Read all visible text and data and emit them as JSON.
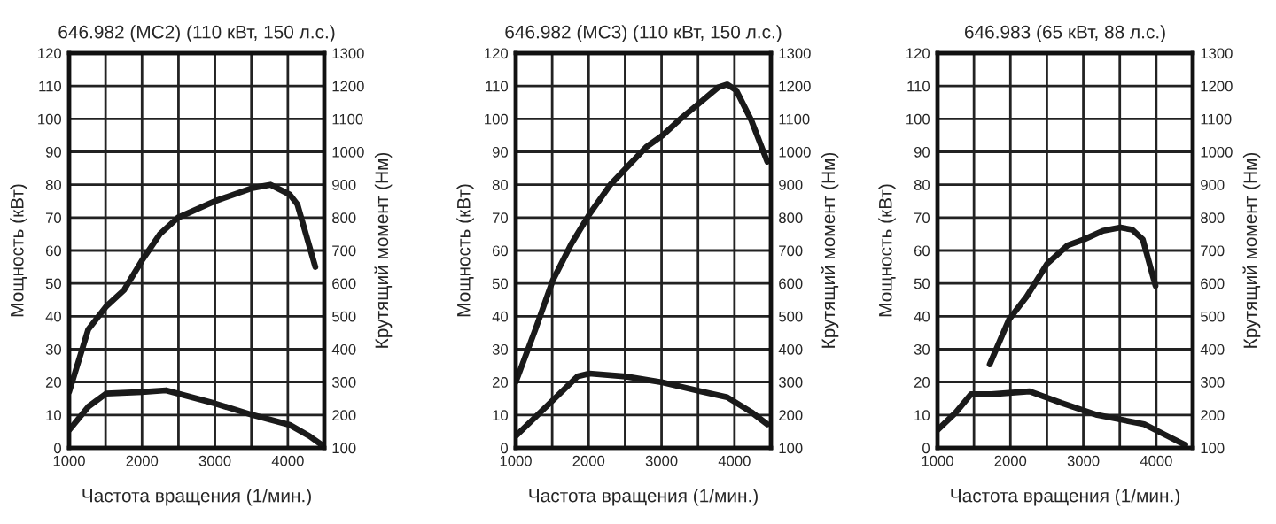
{
  "chart_data": [
    {
      "type": "line",
      "title": "646.982 (MC2) (110 кВт, 150 л.с.)",
      "xlabel": "Частота вращения (1/мин.)",
      "ylabel": "Мощность (кВт)",
      "y2label": "Крутящий момент (Нм)",
      "xlim": [
        1000,
        4500
      ],
      "xticks": [
        1000,
        {
          "value": 1500,
          "label": null
        },
        2000,
        {
          "value": 2500,
          "label": null
        },
        3000,
        {
          "value": 3500,
          "label": null
        },
        4000,
        {
          "value": 4500,
          "label": null
        }
      ],
      "ylim": [
        0,
        120
      ],
      "yticks": [
        0,
        10,
        20,
        30,
        40,
        50,
        60,
        70,
        80,
        90,
        100,
        110,
        120
      ],
      "y2lim": [
        100,
        1300
      ],
      "y2ticks": [
        100,
        200,
        300,
        400,
        500,
        600,
        700,
        800,
        900,
        1000,
        1100,
        1200,
        1300
      ],
      "grid": true,
      "legend": false,
      "series": [
        {
          "color": "#1a1a1a",
          "x": [
            1000,
            1262,
            1508,
            1754,
            2000,
            2246,
            2492,
            3000,
            3516,
            3762,
            4025,
            4131,
            4377
          ],
          "values": [
            17,
            36,
            43,
            48,
            57,
            65,
            70,
            75,
            79,
            80,
            77,
            74,
            55
          ]
        },
        {
          "color": "#1a1a1a",
          "axis": "y2",
          "x": [
            1000,
            1262,
            1508,
            2000,
            2328,
            3000,
            3516,
            4025,
            4295,
            4459
          ],
          "values": [
            154,
            225,
            265,
            270,
            275,
            235,
            200,
            170,
            136,
            110
          ]
        }
      ]
    },
    {
      "type": "line",
      "title": "646.982 (MC3) (110 кВт, 150 л.с.)",
      "xlabel": "Частота вращения (1/мин.)",
      "ylabel": "Мощность (кВт)",
      "y2label": "Крутящий момент (Нм)",
      "xlim": [
        1000,
        4500
      ],
      "xticks": [
        1000,
        {
          "value": 1500,
          "label": null
        },
        2000,
        {
          "value": 2500,
          "label": null
        },
        3000,
        {
          "value": 3500,
          "label": null
        },
        4000,
        {
          "value": 4500,
          "label": null
        }
      ],
      "ylim": [
        0,
        120
      ],
      "yticks": [
        0,
        10,
        20,
        30,
        40,
        50,
        60,
        70,
        80,
        90,
        100,
        110,
        120
      ],
      "y2lim": [
        100,
        1300
      ],
      "y2ticks": [
        100,
        200,
        300,
        400,
        500,
        600,
        700,
        800,
        900,
        1000,
        1100,
        1200,
        1300
      ],
      "grid": true,
      "legend": false,
      "series": [
        {
          "color": "#1a1a1a",
          "x": [
            1000,
            1270,
            1510,
            1763,
            2010,
            2298,
            2512,
            2791,
            3013,
            3285,
            3530,
            3777,
            3900,
            4024,
            4230,
            4450
          ],
          "values": [
            20,
            36,
            51,
            62,
            71,
            80,
            85,
            91.5,
            95,
            100.5,
            105,
            109.6,
            110.5,
            108.7,
            99.6,
            87
          ]
        },
        {
          "color": "#1a1a1a",
          "axis": "y2",
          "x": [
            1000,
            1510,
            1846,
            2010,
            2512,
            3013,
            3530,
            3900,
            4230,
            4450
          ],
          "values": [
            136,
            245,
            317,
            326,
            317,
            299,
            272,
            254,
            209,
            172
          ]
        }
      ]
    },
    {
      "type": "line",
      "title": "646.983 (65 кВт, 88 л.с.)",
      "xlabel": "Частота вращения (1/мин.)",
      "ylabel": "Мощность (кВт)",
      "y2label": "Крутящий момент (Нм)",
      "xlim": [
        1000,
        4500
      ],
      "xticks": [
        1000,
        {
          "value": 1500,
          "label": null
        },
        2000,
        {
          "value": 2500,
          "label": null
        },
        3000,
        {
          "value": 3500,
          "label": null
        },
        4000,
        {
          "value": 4500,
          "label": null
        }
      ],
      "ylim": [
        0,
        120
      ],
      "yticks": [
        0,
        10,
        20,
        30,
        40,
        50,
        60,
        70,
        80,
        90,
        100,
        110,
        120
      ],
      "y2lim": [
        100,
        1300
      ],
      "y2ticks": [
        100,
        200,
        300,
        400,
        500,
        600,
        700,
        800,
        900,
        1000,
        1100,
        1200,
        1300
      ],
      "grid": true,
      "legend": false,
      "series": [
        {
          "color": "#1a1a1a",
          "x": [
            1716,
            1980,
            2223,
            2505,
            2786,
            3012,
            3270,
            3510,
            3670,
            3815,
            3990
          ],
          "values": [
            25.4,
            39,
            46,
            56,
            61.6,
            63.4,
            66,
            67,
            66.3,
            63.4,
            49.3
          ]
        },
        {
          "color": "#1a1a1a",
          "axis": "y2",
          "x": [
            1000,
            1257,
            1459,
            1740,
            2263,
            2706,
            3190,
            3834,
            4155,
            4397
          ],
          "values": [
            154,
            209,
            263,
            263,
            272,
            236,
            200,
            172,
            136,
            109
          ]
        }
      ]
    }
  ]
}
